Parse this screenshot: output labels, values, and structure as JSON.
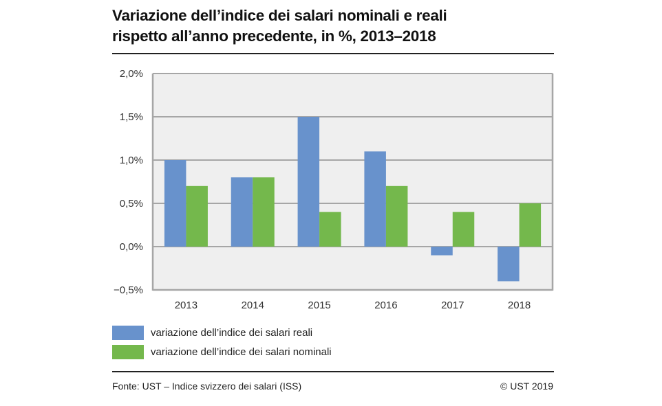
{
  "title_lines": [
    "Variazione dell’indice dei salari nominali e reali",
    "rispetto all’anno precedente, in %, 2013–2018"
  ],
  "chart_data": {
    "type": "bar",
    "title": "Variazione dell’indice dei salari nominali e reali rispetto all’anno precedente, in %, 2013–2018",
    "xlabel": "",
    "ylabel": "",
    "categories": [
      "2013",
      "2014",
      "2015",
      "2016",
      "2017",
      "2018"
    ],
    "series": [
      {
        "name": "variazione dell’indice dei salari reali",
        "color": "#6892cc",
        "values": [
          1.0,
          0.8,
          1.5,
          1.1,
          -0.1,
          -0.4
        ]
      },
      {
        "name": "variazione dell’indice dei salari nominali",
        "color": "#74b84c",
        "values": [
          0.7,
          0.8,
          0.4,
          0.7,
          0.4,
          0.5
        ]
      }
    ],
    "ylim": [
      -0.5,
      2.0
    ],
    "yticks": [
      2.0,
      1.5,
      1.0,
      0.5,
      0.0,
      -0.5
    ],
    "ytick_labels": [
      "2,0%",
      "1,5%",
      "1,0%",
      "0,5%",
      "0,0%",
      "−0,5%"
    ],
    "grid": true,
    "legend_position": "bottom-left",
    "plot_background": "#efefef",
    "grid_color": "#a6a6a6"
  },
  "footer": {
    "source": "Fonte: UST – Indice svizzero dei salari (ISS)",
    "copyright": "© UST 2019"
  }
}
